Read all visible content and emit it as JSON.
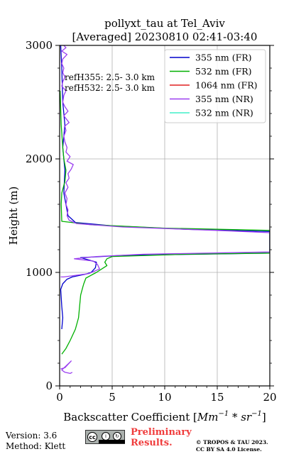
{
  "chart_data": {
    "type": "line",
    "title_line1": "pollyxt_tau at Tel_Aviv",
    "title_line2": "[Averaged] 20230810 02:41-03:40",
    "xlabel_prefix": "Backscatter Coefficient [",
    "xlabel_unit": "Mm",
    "xlabel_exp1": "−1",
    "xlabel_mid": " * sr",
    "xlabel_exp2": "−1",
    "xlabel_suffix": "]",
    "ylabel": "Height (m)",
    "xlim": [
      0,
      20
    ],
    "ylim": [
      0,
      3000
    ],
    "xticks": [
      0,
      5,
      10,
      15,
      20
    ],
    "yticks": [
      0,
      1000,
      2000,
      3000
    ],
    "grid": true,
    "legend_position": "top-right",
    "annotations": [
      "refH355:  2.5- 3.0 km",
      "refH532:  2.5- 3.0 km"
    ],
    "series": [
      {
        "name": "355 nm (FR)",
        "color": "#0000cc",
        "points": [
          [
            0.1,
            3000
          ],
          [
            0.2,
            2800
          ],
          [
            0.3,
            2500
          ],
          [
            0.5,
            2300
          ],
          [
            0.3,
            2100
          ],
          [
            0.5,
            1900
          ],
          [
            0.4,
            1700
          ],
          [
            0.8,
            1500
          ],
          [
            1.5,
            1440
          ],
          [
            5,
            1410
          ],
          [
            12,
            1380
          ],
          [
            20,
            1360
          ],
          [
            20,
            1170
          ],
          [
            6,
            1150
          ],
          [
            2,
            1130
          ],
          [
            3.5,
            1090
          ],
          [
            3.4,
            1040
          ],
          [
            3.0,
            1000
          ],
          [
            2.5,
            985
          ],
          [
            1.2,
            960
          ],
          [
            0.7,
            940
          ],
          [
            0.3,
            900
          ],
          [
            0.1,
            850
          ],
          [
            0.2,
            700
          ],
          [
            0.3,
            600
          ],
          [
            0.2,
            500
          ]
        ]
      },
      {
        "name": "532 nm (FR)",
        "color": "#00b000",
        "points": [
          [
            0.05,
            2600
          ],
          [
            0.15,
            2300
          ],
          [
            0.3,
            2100
          ],
          [
            0.4,
            2000
          ],
          [
            0.6,
            1900
          ],
          [
            0.5,
            1800
          ],
          [
            0.2,
            1700
          ],
          [
            0.15,
            1600
          ],
          [
            0.2,
            1450
          ],
          [
            3,
            1420
          ],
          [
            10,
            1390
          ],
          [
            20,
            1370
          ],
          [
            20,
            1170
          ],
          [
            12,
            1160
          ],
          [
            5,
            1140
          ],
          [
            4.5,
            1120
          ],
          [
            4.3,
            1090
          ],
          [
            4.5,
            1060
          ],
          [
            3.5,
            1000
          ],
          [
            2.5,
            950
          ],
          [
            2.3,
            900
          ],
          [
            2.2,
            870
          ],
          [
            2.0,
            800
          ],
          [
            1.9,
            700
          ],
          [
            1.8,
            600
          ],
          [
            1.5,
            500
          ],
          [
            1.0,
            400
          ],
          [
            0.6,
            330
          ],
          [
            0.2,
            280
          ]
        ]
      },
      {
        "name": "1064 nm (FR)",
        "color": "#e02020",
        "points": []
      },
      {
        "name": "355 nm (NR)",
        "color": "#9b3ff0",
        "points": [
          [
            0.4,
            3000
          ],
          [
            0.6,
            2980
          ],
          [
            0.2,
            2950
          ],
          [
            0.7,
            2920
          ],
          [
            0.3,
            2880
          ],
          [
            0.2,
            2840
          ],
          [
            0.4,
            2800
          ],
          [
            0.3,
            2760
          ],
          [
            0.5,
            2720
          ],
          [
            0.3,
            2680
          ],
          [
            0.2,
            2640
          ],
          [
            0.6,
            2600
          ],
          [
            0.4,
            2560
          ],
          [
            0.3,
            2500
          ],
          [
            0.5,
            2460
          ],
          [
            0.8,
            2420
          ],
          [
            0.4,
            2380
          ],
          [
            0.9,
            2320
          ],
          [
            0.5,
            2290
          ],
          [
            0.6,
            2250
          ],
          [
            0.4,
            2200
          ],
          [
            0.5,
            2150
          ],
          [
            0.7,
            2100
          ],
          [
            0.6,
            2060
          ],
          [
            1.0,
            2020
          ],
          [
            0.7,
            1980
          ],
          [
            1.3,
            1950
          ],
          [
            1.1,
            1910
          ],
          [
            0.8,
            1870
          ],
          [
            0.9,
            1830
          ],
          [
            0.6,
            1790
          ],
          [
            0.8,
            1750
          ],
          [
            0.5,
            1700
          ],
          [
            0.7,
            1650
          ],
          [
            0.6,
            1600
          ],
          [
            0.8,
            1550
          ],
          [
            0.7,
            1500
          ],
          [
            0.9,
            1460
          ],
          [
            1.6,
            1430
          ],
          [
            6,
            1400
          ],
          [
            15,
            1370
          ],
          [
            20,
            1350
          ],
          [
            20,
            1180
          ],
          [
            8,
            1160
          ],
          [
            3.5,
            1140
          ],
          [
            1.4,
            1120
          ],
          [
            3.2,
            1100
          ],
          [
            3.6,
            1070
          ],
          [
            3.8,
            1030
          ],
          [
            2.8,
            990
          ],
          [
            0.4,
            960
          ],
          [
            0.1,
            960
          ]
        ]
      },
      {
        "name": "532 nm (NR)",
        "color": "#40f0c8",
        "points": []
      },
      {
        "name": "",
        "color": "#9b3ff0",
        "points": [
          [
            0.1,
            150
          ],
          [
            0.5,
            160
          ],
          [
            1.1,
            220
          ],
          [
            0.2,
            140
          ],
          [
            0.5,
            120
          ],
          [
            1.0,
            110
          ],
          [
            1.2,
            120
          ]
        ]
      }
    ]
  },
  "footer": {
    "version": "Version: 3.6",
    "method": "Method: Klett",
    "preliminary_line1": "Preliminary",
    "preliminary_line2": "Results.",
    "copyright_line1": "© TROPOS & TAU 2023.",
    "copyright_line2": "CC BY SA 4.0 License."
  }
}
